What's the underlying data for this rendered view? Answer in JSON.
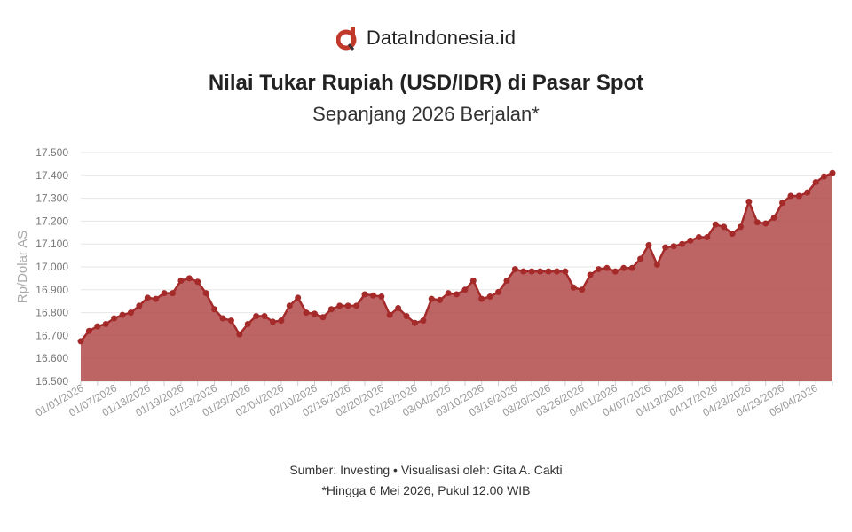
{
  "brand": {
    "name": "DataIndonesia.id",
    "icon": "data-indonesia-logo-icon",
    "accent": "#c0392b"
  },
  "header": {
    "title": "Nilai Tukar Rupiah (USD/IDR) di Pasar Spot",
    "subtitle": "Sepanjang 2026 Berjalan*"
  },
  "footer": {
    "source": "Sumber: Investing • Visualisasi oleh: Gita A. Cakti",
    "note": "*Hingga 6 Mei 2026, Pukul 12.00 WIB"
  },
  "chart_data": {
    "type": "area",
    "ylabel": "Rp/Dolar AS",
    "xlabel": "",
    "ylim": [
      16500,
      17500
    ],
    "yticks": [
      16500,
      16600,
      16700,
      16800,
      16900,
      17000,
      17100,
      17200,
      17300,
      17400,
      17500
    ],
    "ytick_labels": [
      "16.500",
      "16.600",
      "16.700",
      "16.800",
      "16.900",
      "17.000",
      "17.100",
      "17.200",
      "17.300",
      "17.400",
      "17.500"
    ],
    "xtick_labels": [
      "01/01/2026",
      "01/07/2026",
      "01/13/2026",
      "01/19/2026",
      "01/23/2026",
      "01/29/2026",
      "02/04/2026",
      "02/10/2026",
      "02/16/2026",
      "02/20/2026",
      "02/26/2026",
      "03/04/2026",
      "03/10/2026",
      "03/16/2026",
      "03/20/2026",
      "03/26/2026",
      "04/01/2026",
      "04/07/2026",
      "04/13/2026",
      "04/17/2026",
      "04/23/2026",
      "04/29/2026",
      "05/04/2026"
    ],
    "grid": true,
    "color": "#a52a2a",
    "fill_color": "#b24a4a",
    "values": [
      16675,
      16720,
      16740,
      16750,
      16775,
      16790,
      16800,
      16830,
      16865,
      16860,
      16885,
      16885,
      16940,
      16950,
      16935,
      16885,
      16815,
      16775,
      16765,
      16705,
      16750,
      16785,
      16785,
      16760,
      16765,
      16830,
      16865,
      16800,
      16795,
      16780,
      16815,
      16830,
      16830,
      16830,
      16880,
      16875,
      16870,
      16790,
      16820,
      16785,
      16755,
      16765,
      16860,
      16855,
      16885,
      16880,
      16900,
      16940,
      16860,
      16870,
      16890,
      16940,
      16990,
      16980,
      16980,
      16980,
      16980,
      16980,
      16980,
      16910,
      16900,
      16965,
      16990,
      16995,
      16980,
      16995,
      16995,
      17035,
      17095,
      17010,
      17085,
      17090,
      17100,
      17115,
      17130,
      17130,
      17185,
      17175,
      17145,
      17175,
      17285,
      17195,
      17190,
      17215,
      17280,
      17310,
      17310,
      17325,
      17370,
      17395,
      17410
    ]
  }
}
